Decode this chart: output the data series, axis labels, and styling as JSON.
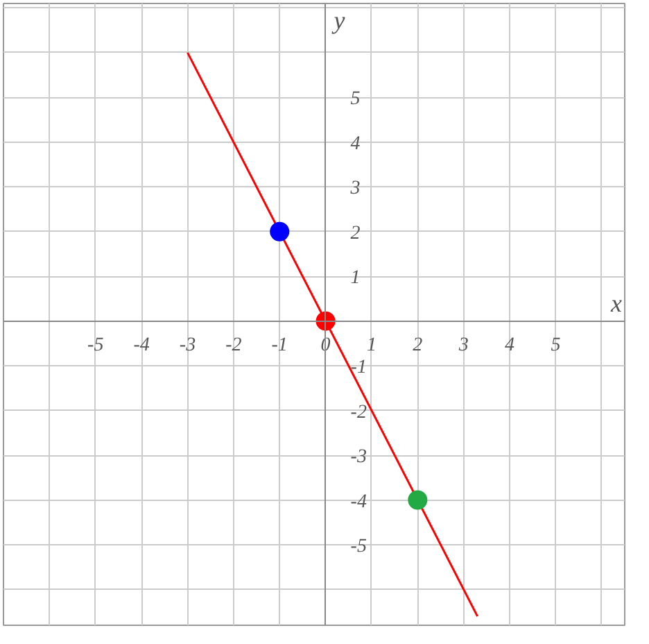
{
  "chart_data": {
    "type": "line",
    "xlabel": "x",
    "ylabel": "y",
    "xlim": [
      -7,
      6.5
    ],
    "ylim": [
      -6.8,
      7.1
    ],
    "xticks": [
      {
        "value": -7,
        "label": null
      },
      {
        "value": -6,
        "label": null
      },
      -5,
      -4,
      -3,
      -2,
      -1,
      0,
      1,
      2,
      3,
      4,
      5,
      {
        "value": 6,
        "label": null
      }
    ],
    "yticks": [
      {
        "value": -6,
        "label": null
      },
      -5,
      -4,
      -3,
      -2,
      -1,
      {
        "value": 0,
        "label": null
      },
      1,
      2,
      3,
      4,
      5,
      {
        "value": 6,
        "label": null
      },
      {
        "value": 7,
        "label": null
      }
    ],
    "grid": true,
    "marker": "none",
    "series": [
      {
        "color": "#ff0000",
        "x": [
          -3,
          3.3
        ],
        "values": [
          6,
          -6.6
        ]
      },
      {
        "type": "scatter",
        "marker": "circle",
        "x": [
          -1,
          0,
          2
        ],
        "values": [
          2,
          0,
          -4
        ],
        "colors": [
          "#0000ff",
          "#ff0000",
          "#22aa44"
        ]
      }
    ]
  }
}
